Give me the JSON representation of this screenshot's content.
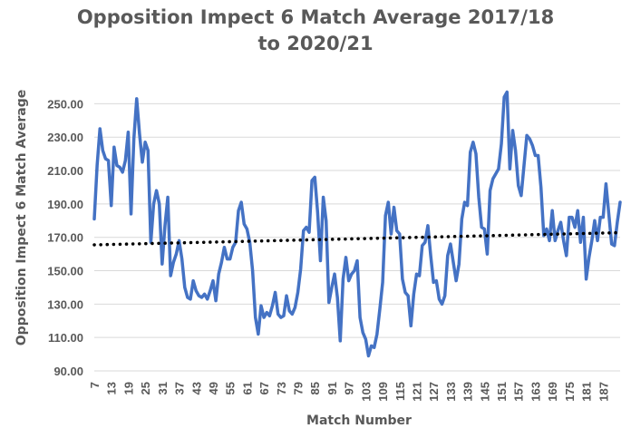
{
  "chart_data": {
    "type": "line",
    "title_line1": "Opposition Impect 6 Match Average 2017/18",
    "title_line2": "to 2020/21",
    "xlabel": "Match Number",
    "ylabel": "Opposition Impect 6 Match Average",
    "ylim": [
      90,
      260
    ],
    "yticks": [
      "90.00",
      "110.00",
      "130.00",
      "150.00",
      "170.00",
      "190.00",
      "210.00",
      "230.00",
      "250.00"
    ],
    "xticks": [
      "7",
      "13",
      "19",
      "25",
      "31",
      "37",
      "43",
      "49",
      "55",
      "61",
      "67",
      "73",
      "79",
      "85",
      "91",
      "97",
      "103",
      "109",
      "115",
      "121",
      "127",
      "133",
      "139",
      "145",
      "151",
      "157",
      "163",
      "169",
      "175",
      "181",
      "187"
    ],
    "x_start": 7,
    "grid": true,
    "line_color": "#4472c4",
    "trend_color": "#000000",
    "series": [
      {
        "values": [
          181,
          213,
          235,
          222,
          217,
          216,
          189,
          224,
          213,
          212,
          209,
          216,
          233,
          184,
          229,
          253,
          232,
          215,
          227,
          222,
          167,
          190,
          198,
          190,
          154,
          177,
          194,
          147,
          155,
          160,
          168,
          157,
          140,
          134,
          133,
          144,
          138,
          135,
          134,
          136,
          133,
          138,
          144,
          132,
          148,
          155,
          164,
          157,
          157,
          164,
          167,
          186,
          191,
          178,
          175,
          167,
          150,
          122,
          112,
          129,
          122,
          125,
          123,
          129,
          137,
          124,
          122,
          123,
          135,
          126,
          124,
          128,
          137,
          151,
          174,
          176,
          173,
          204,
          206,
          185,
          156,
          194,
          180,
          131,
          140,
          148,
          134,
          108,
          145,
          158,
          144,
          148,
          150,
          156,
          122,
          113,
          109,
          99,
          105,
          104,
          112,
          127,
          143,
          183,
          191,
          172,
          188,
          174,
          172,
          145,
          137,
          135,
          117,
          136,
          148,
          147,
          165,
          167,
          177,
          159,
          143,
          144,
          133,
          130,
          135,
          159,
          166,
          155,
          144,
          154,
          181,
          191,
          189,
          221,
          227,
          220,
          194,
          176,
          175,
          160,
          198,
          205,
          208,
          211,
          226,
          254,
          257,
          211,
          234,
          222,
          201,
          195,
          213,
          231,
          229,
          225,
          219,
          219,
          200,
          171,
          175,
          168,
          186,
          168,
          174,
          179,
          168,
          159,
          182,
          182,
          176,
          186,
          167,
          182,
          145,
          158,
          168,
          180,
          168,
          182,
          182,
          202,
          184,
          166,
          165,
          179,
          191
        ]
      }
    ],
    "trendline": {
      "start": 165.5,
      "end": 172.8
    }
  }
}
